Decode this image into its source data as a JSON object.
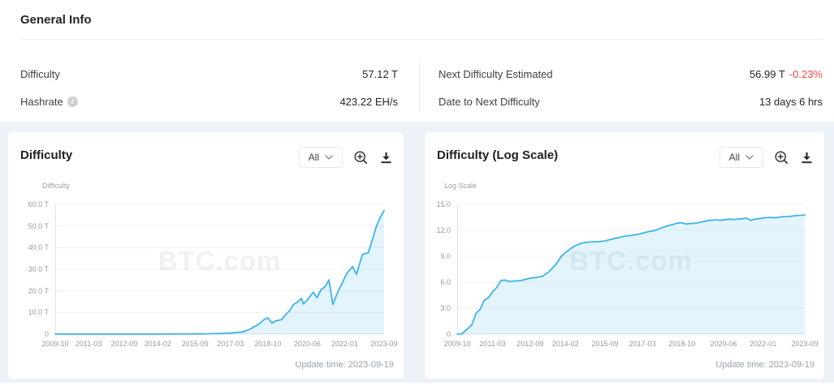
{
  "general_info": {
    "title": "General Info",
    "columns": [
      {
        "rows": [
          {
            "label": "Difficulty",
            "value": "57.12 T"
          },
          {
            "label": "Hashrate",
            "value": "423.22 EH/s",
            "info_icon": "i"
          }
        ]
      },
      {
        "rows": [
          {
            "label": "Next Difficulty Estimated",
            "value": "56.99 T",
            "delta": "-0.23%"
          },
          {
            "label": "Date to Next Difficulty",
            "value": "13 days 6 hrs"
          }
        ]
      }
    ]
  },
  "colors": {
    "line": "#3cb4ea",
    "area_fill": "rgba(60,180,234,0.14)",
    "band_background": "#edf2f8",
    "delta_red": "#f5464b",
    "grid": "#f0f0f0",
    "axis": "#dfe4ea",
    "tick_text": "#999999"
  },
  "chart_data": [
    {
      "type": "area",
      "title": "Difficulty",
      "unit_label": "Difficulty",
      "ylabel": "Difficulty (T)",
      "xlabel": "",
      "range_selector_value": "All",
      "update_time": "Update time: 2023-09-19",
      "watermark": "BTC.com",
      "legend": "none",
      "grid": "horizontal",
      "ylim": [
        0,
        60
      ],
      "ytick_labels": [
        "60.0 T",
        "50.0 T",
        "40.0 T",
        "30.0 T",
        "20.0 T",
        "10.0 T",
        "0"
      ],
      "xtick_labels": [
        "2009-10",
        "2011-03",
        "2012-09",
        "2014-02",
        "2015-09",
        "2017-03",
        "2018-10",
        "2020-06",
        "2022-01",
        "2023-09"
      ],
      "x": [
        "2009-10",
        "2009-12",
        "2010-02",
        "2010-05",
        "2010-07",
        "2010-09",
        "2010-11",
        "2011-01",
        "2011-03",
        "2011-05",
        "2011-07",
        "2011-09",
        "2011-11",
        "2012-02",
        "2012-05",
        "2012-09",
        "2012-12",
        "2013-03",
        "2013-06",
        "2013-09",
        "2013-12",
        "2014-02",
        "2014-06",
        "2014-10",
        "2015-02",
        "2015-06",
        "2015-09",
        "2016-01",
        "2016-06",
        "2016-12",
        "2017-03",
        "2017-06",
        "2017-09",
        "2017-12",
        "2018-03",
        "2018-06",
        "2018-08",
        "2018-10",
        "2018-12",
        "2019-02",
        "2019-05",
        "2019-07",
        "2019-09",
        "2019-11",
        "2020-01",
        "2020-03",
        "2020-04",
        "2020-06",
        "2020-09",
        "2020-11",
        "2021-01",
        "2021-03",
        "2021-05",
        "2021-07",
        "2021-09",
        "2021-12",
        "2022-02",
        "2022-05",
        "2022-07",
        "2022-10",
        "2023-01",
        "2023-03",
        "2023-05",
        "2023-07",
        "2023-09"
      ],
      "y": [
        0,
        0,
        0,
        0,
        0,
        0,
        0,
        0,
        0,
        0,
        0,
        0,
        0,
        0,
        0,
        0,
        0,
        0,
        0,
        0.0001,
        0.0009,
        0.0026,
        0.0135,
        0.035,
        0.044,
        0.049,
        0.059,
        0.104,
        0.199,
        0.31,
        0.46,
        0.71,
        0.92,
        1.87,
        3.29,
        4.94,
        6.73,
        7.45,
        5.11,
        6.06,
        6.7,
        9.01,
        10.77,
        13.69,
        14.78,
        16.55,
        13.91,
        15.78,
        19.3,
        16.79,
        20.61,
        21.87,
        25.05,
        13.67,
        18.42,
        24.2,
        27.97,
        31.25,
        27.69,
        36.84,
        37.59,
        43.55,
        49.55,
        53.91,
        57.12
      ]
    },
    {
      "type": "area",
      "title": "Difficulty (Log Scale)",
      "unit_label": "Log Scale",
      "ylabel": "log10(Difficulty)",
      "xlabel": "",
      "range_selector_value": "All",
      "update_time": "Update time: 2023-09-19",
      "watermark": "BTC.com",
      "legend": "none",
      "grid": "horizontal",
      "ylim": [
        0,
        15
      ],
      "ytick_labels": [
        "15.0",
        "12.0",
        "9.0",
        "6.0",
        "3.0",
        "0"
      ],
      "xtick_labels": [
        "2009-10",
        "2011-03",
        "2012-09",
        "2014-02",
        "2015-09",
        "2017-03",
        "2018-10",
        "2020-06",
        "2022-01",
        "2023-09"
      ],
      "x": [
        "2009-10",
        "2009-12",
        "2010-02",
        "2010-05",
        "2010-07",
        "2010-09",
        "2010-11",
        "2011-01",
        "2011-03",
        "2011-05",
        "2011-07",
        "2011-09",
        "2011-11",
        "2012-02",
        "2012-05",
        "2012-09",
        "2012-12",
        "2013-03",
        "2013-06",
        "2013-09",
        "2013-12",
        "2014-02",
        "2014-06",
        "2014-10",
        "2015-02",
        "2015-06",
        "2015-09",
        "2016-01",
        "2016-06",
        "2016-12",
        "2017-03",
        "2017-06",
        "2017-09",
        "2017-12",
        "2018-03",
        "2018-06",
        "2018-08",
        "2018-10",
        "2018-12",
        "2019-02",
        "2019-05",
        "2019-07",
        "2019-09",
        "2019-11",
        "2020-01",
        "2020-03",
        "2020-04",
        "2020-06",
        "2020-09",
        "2020-11",
        "2021-01",
        "2021-03",
        "2021-05",
        "2021-07",
        "2021-09",
        "2021-12",
        "2022-02",
        "2022-05",
        "2022-07",
        "2022-10",
        "2023-01",
        "2023-03",
        "2023-05",
        "2023-07",
        "2023-09"
      ],
      "y": [
        0,
        0,
        0.4,
        1.04,
        2.39,
        2.85,
        3.9,
        4.21,
        4.88,
        5.39,
        6.19,
        6.24,
        6.08,
        6.14,
        6.21,
        6.46,
        6.54,
        6.69,
        7.19,
        7.94,
        8.96,
        9.42,
        10.13,
        10.54,
        10.65,
        10.69,
        10.77,
        11.02,
        11.3,
        11.49,
        11.66,
        11.85,
        11.97,
        12.27,
        12.52,
        12.69,
        12.83,
        12.87,
        12.71,
        12.78,
        12.83,
        12.95,
        13.03,
        13.14,
        13.17,
        13.22,
        13.14,
        13.2,
        13.29,
        13.23,
        13.31,
        13.34,
        13.4,
        13.14,
        13.27,
        13.38,
        13.45,
        13.49,
        13.44,
        13.57,
        13.58,
        13.64,
        13.7,
        13.73,
        13.76
      ]
    }
  ]
}
